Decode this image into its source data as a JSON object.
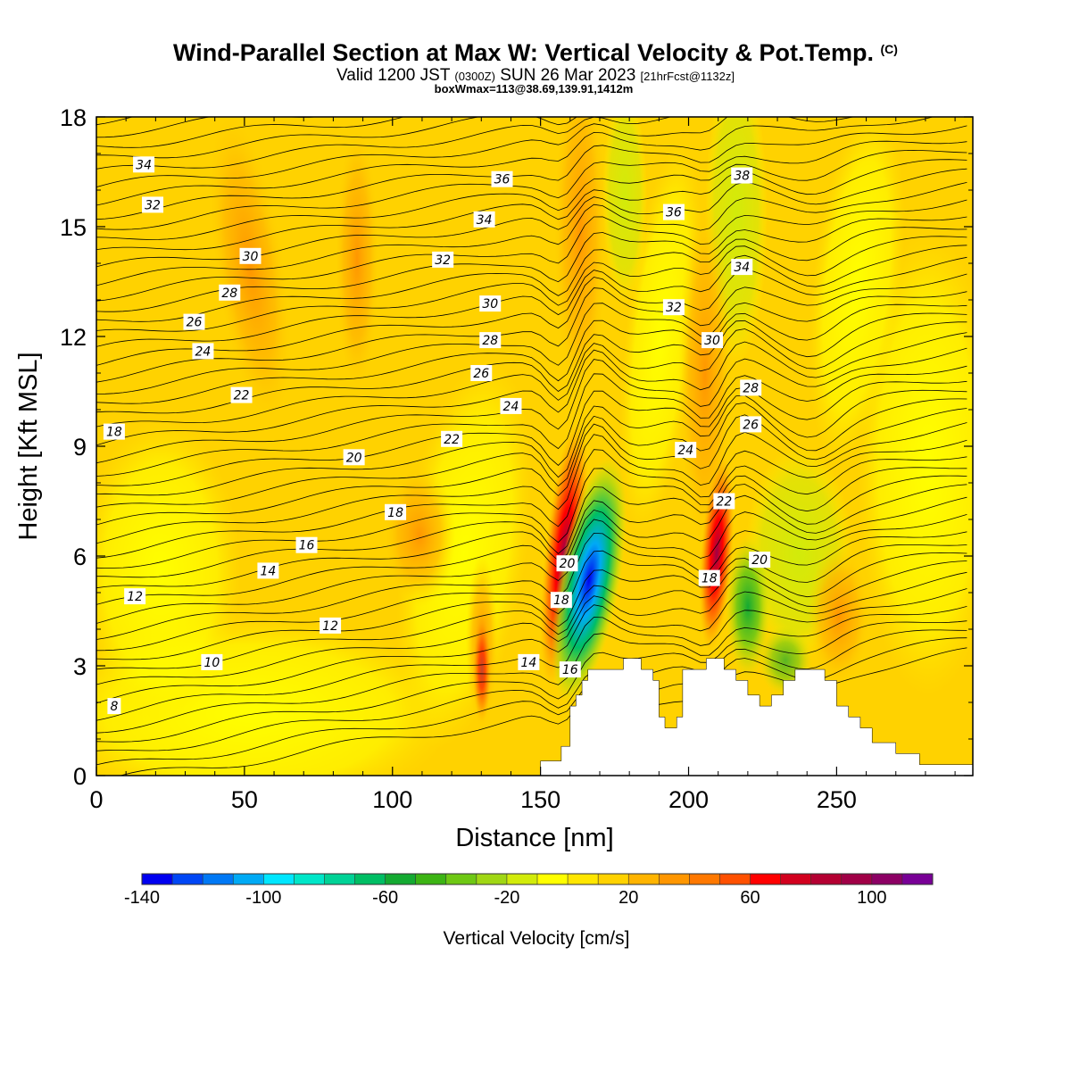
{
  "header": {
    "title": "Wind-Parallel Section at Max W: Vertical Velocity & Pot.Temp.",
    "title_tag": "(C)",
    "valid_prefix": "Valid 1200 JST",
    "valid_utc": "(0300Z)",
    "valid_date": "SUN 26 Mar 2023",
    "valid_fcst": "[21hrFcst@1132z]",
    "boxline": "boxWmax=113@38.69,139.91,1412m"
  },
  "chart_data": {
    "type": "contour",
    "xlabel": "Distance [nm]",
    "ylabel": "Height [Kft MSL]",
    "xlim": [
      0,
      296
    ],
    "ylim": [
      0,
      18
    ],
    "x_ticks": [
      0,
      50,
      100,
      150,
      200,
      250
    ],
    "y_ticks": [
      0,
      3,
      6,
      9,
      12,
      15,
      18
    ],
    "grid": false,
    "colorbar": {
      "title": "Vertical Velocity [cm/s]",
      "range": [
        -140,
        120
      ],
      "step": 10,
      "tick_values": [
        -140,
        -100,
        -60,
        -20,
        20,
        60,
        100
      ],
      "tick_labels": [
        "-140",
        "-100",
        "-60",
        "-20",
        "20",
        "60",
        "100"
      ],
      "colors": [
        "#0000f0",
        "#0046f5",
        "#0078f5",
        "#00aaf5",
        "#00e6ff",
        "#00e6c8",
        "#00d296",
        "#00be64",
        "#14aa32",
        "#3cb414",
        "#6ec814",
        "#a0d714",
        "#d2eb0a",
        "#ffff00",
        "#ffe600",
        "#ffd200",
        "#ffb400",
        "#ff9600",
        "#ff7800",
        "#ff5000",
        "#ff0000",
        "#d2001e",
        "#b40032",
        "#a00046",
        "#8c0064",
        "#780096"
      ]
    },
    "terrain": [
      [
        150,
        0
      ],
      [
        150,
        0.4
      ],
      [
        157,
        0.4
      ],
      [
        157,
        0.8
      ],
      [
        160,
        0.8
      ],
      [
        160,
        1.9
      ],
      [
        162,
        1.9
      ],
      [
        162,
        2.2
      ],
      [
        164,
        2.2
      ],
      [
        164,
        2.6
      ],
      [
        166,
        2.6
      ],
      [
        166,
        2.9
      ],
      [
        178,
        2.9
      ],
      [
        178,
        3.2
      ],
      [
        184,
        3.2
      ],
      [
        184,
        2.9
      ],
      [
        188,
        2.9
      ],
      [
        188,
        2.6
      ],
      [
        190,
        2.6
      ],
      [
        190,
        1.6
      ],
      [
        192,
        1.6
      ],
      [
        192,
        1.3
      ],
      [
        196,
        1.3
      ],
      [
        196,
        1.6
      ],
      [
        198,
        1.6
      ],
      [
        198,
        2.9
      ],
      [
        206,
        2.9
      ],
      [
        206,
        3.2
      ],
      [
        212,
        3.2
      ],
      [
        212,
        2.9
      ],
      [
        216,
        2.9
      ],
      [
        216,
        2.6
      ],
      [
        220,
        2.6
      ],
      [
        220,
        2.2
      ],
      [
        224,
        2.2
      ],
      [
        224,
        1.9
      ],
      [
        228,
        1.9
      ],
      [
        228,
        2.2
      ],
      [
        232,
        2.2
      ],
      [
        232,
        2.6
      ],
      [
        236,
        2.6
      ],
      [
        236,
        2.9
      ],
      [
        246,
        2.9
      ],
      [
        246,
        2.6
      ],
      [
        250,
        2.6
      ],
      [
        250,
        1.9
      ],
      [
        254,
        1.9
      ],
      [
        254,
        1.6
      ],
      [
        258,
        1.6
      ],
      [
        258,
        1.3
      ],
      [
        262,
        1.3
      ],
      [
        262,
        0.9
      ],
      [
        270,
        0.9
      ],
      [
        270,
        0.6
      ],
      [
        278,
        0.6
      ],
      [
        278,
        0.3
      ],
      [
        296,
        0.3
      ],
      [
        296,
        0
      ]
    ],
    "theta_contour_labels": [
      {
        "text": "34",
        "x": 16,
        "y": 16.7
      },
      {
        "text": "32",
        "x": 19,
        "y": 15.6
      },
      {
        "text": "30",
        "x": 52,
        "y": 14.2
      },
      {
        "text": "28",
        "x": 45,
        "y": 13.2
      },
      {
        "text": "26",
        "x": 33,
        "y": 12.4
      },
      {
        "text": "24",
        "x": 36,
        "y": 11.6
      },
      {
        "text": "22",
        "x": 49,
        "y": 10.4
      },
      {
        "text": "18",
        "x": 6,
        "y": 9.4
      },
      {
        "text": "20",
        "x": 87,
        "y": 8.7
      },
      {
        "text": "18",
        "x": 101,
        "y": 7.2
      },
      {
        "text": "16",
        "x": 71,
        "y": 6.3
      },
      {
        "text": "14",
        "x": 58,
        "y": 5.6
      },
      {
        "text": "12",
        "x": 13,
        "y": 4.9
      },
      {
        "text": "12",
        "x": 79,
        "y": 4.1
      },
      {
        "text": "10",
        "x": 39,
        "y": 3.1
      },
      {
        "text": "8",
        "x": 6,
        "y": 1.9
      },
      {
        "text": "36",
        "x": 137,
        "y": 16.3
      },
      {
        "text": "34",
        "x": 131,
        "y": 15.2
      },
      {
        "text": "32",
        "x": 117,
        "y": 14.1
      },
      {
        "text": "30",
        "x": 133,
        "y": 12.9
      },
      {
        "text": "28",
        "x": 133,
        "y": 11.9
      },
      {
        "text": "26",
        "x": 130,
        "y": 11.0
      },
      {
        "text": "24",
        "x": 140,
        "y": 10.1
      },
      {
        "text": "22",
        "x": 120,
        "y": 9.2
      },
      {
        "text": "14",
        "x": 146,
        "y": 3.1
      },
      {
        "text": "16",
        "x": 160,
        "y": 2.9
      },
      {
        "text": "18",
        "x": 157,
        "y": 4.8
      },
      {
        "text": "20",
        "x": 159,
        "y": 5.8
      },
      {
        "text": "38",
        "x": 218,
        "y": 16.4
      },
      {
        "text": "36",
        "x": 195,
        "y": 15.4
      },
      {
        "text": "34",
        "x": 218,
        "y": 13.9
      },
      {
        "text": "32",
        "x": 195,
        "y": 12.8
      },
      {
        "text": "30",
        "x": 208,
        "y": 11.9
      },
      {
        "text": "28",
        "x": 221,
        "y": 10.6
      },
      {
        "text": "26",
        "x": 221,
        "y": 9.6
      },
      {
        "text": "24",
        "x": 199,
        "y": 8.9
      },
      {
        "text": "22",
        "x": 212,
        "y": 7.5
      },
      {
        "text": "20",
        "x": 224,
        "y": 5.9
      },
      {
        "text": "18",
        "x": 207,
        "y": 5.4
      }
    ]
  }
}
